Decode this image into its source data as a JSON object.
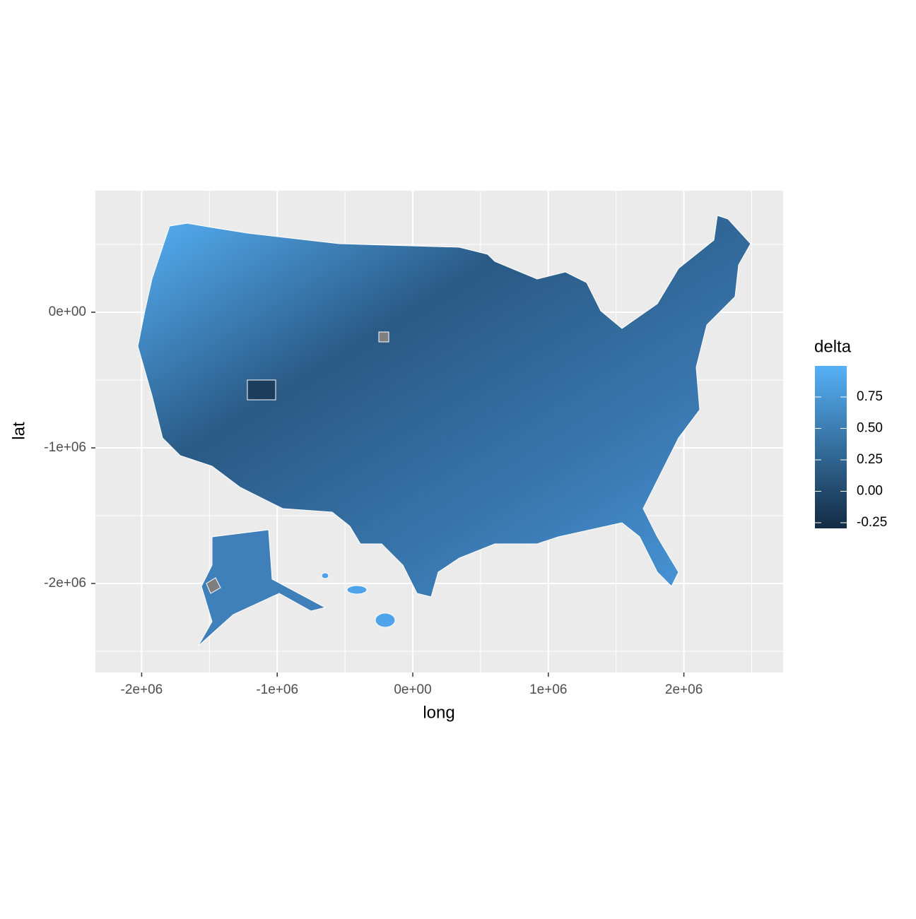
{
  "chart_data": {
    "type": "map",
    "x_label": "long",
    "y_label": "lat",
    "xlim": [
      -2341000,
      2732000
    ],
    "ylim": [
      -2656000,
      896000
    ],
    "xticks": [
      {
        "value": -2000000,
        "label": "-2e+06"
      },
      {
        "value": -1000000,
        "label": "-1e+06"
      },
      {
        "value": 0,
        "label": "0e+00"
      },
      {
        "value": 1000000,
        "label": "1e+06"
      },
      {
        "value": 2000000,
        "label": "2e+06"
      }
    ],
    "yticks": [
      {
        "value": -2000000,
        "label": "-2e+06"
      },
      {
        "value": -1000000,
        "label": "-1e+06"
      },
      {
        "value": 0,
        "label": "0e+00"
      }
    ],
    "minor_xticks": [
      -1500000,
      -500000,
      500000,
      1500000,
      2500000
    ],
    "minor_yticks": [
      -2500000,
      -1500000,
      -500000,
      500000
    ],
    "grid": true,
    "legend": {
      "title": "delta",
      "position": "right",
      "lim": [
        -0.295,
        0.997
      ],
      "ticks": [
        -0.25,
        {
          "value": 0,
          "label": "0.00"
        },
        0.25,
        {
          "value": 0.5,
          "label": "0.50"
        },
        0.75
      ],
      "low_color": "#132B43",
      "high_color": "#56B1F7"
    }
  }
}
